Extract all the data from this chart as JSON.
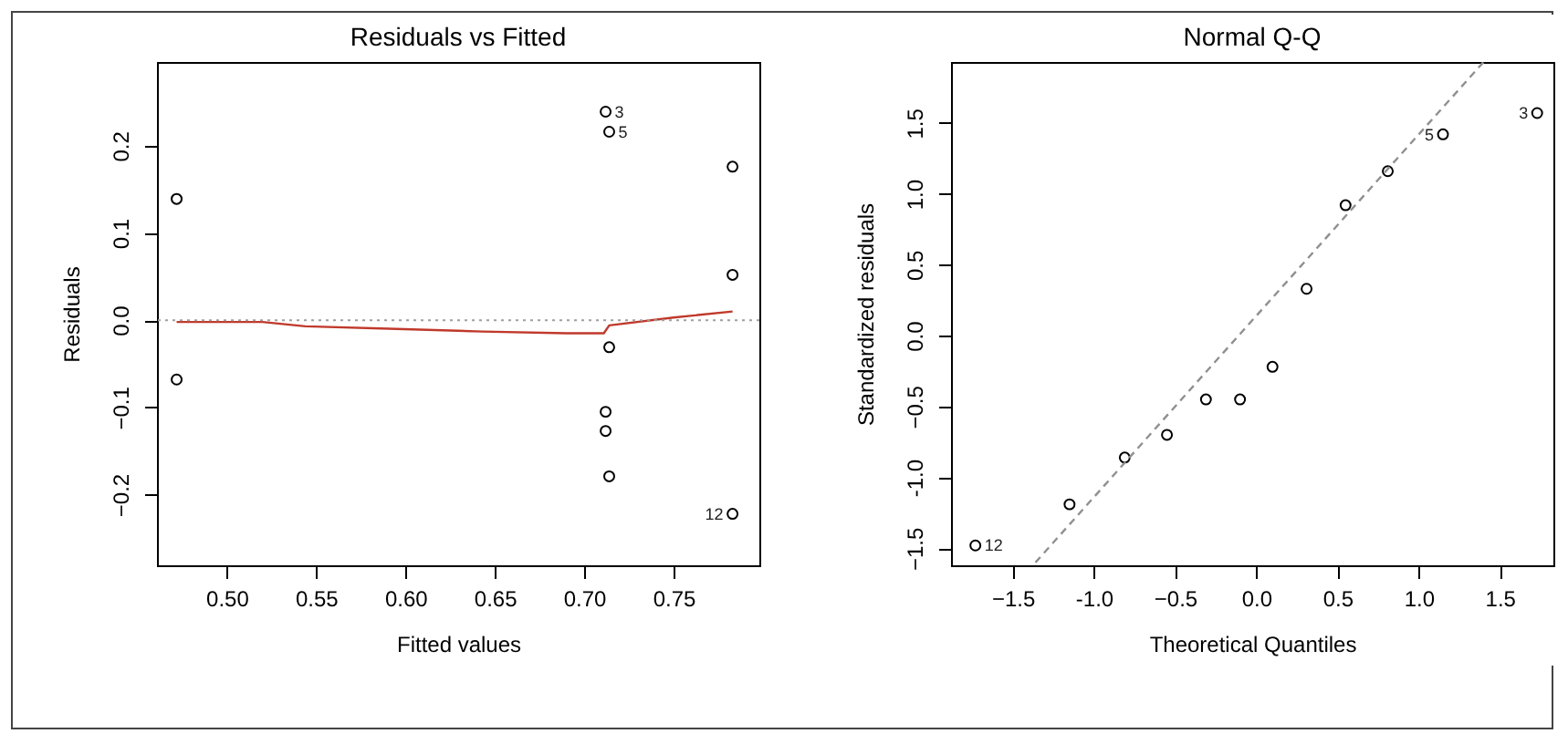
{
  "chart_data": [
    {
      "type": "scatter",
      "title": "Residuals vs Fitted",
      "xlabel": "Fitted values",
      "ylabel": "Residuals",
      "xlim": [
        0.461,
        0.798
      ],
      "xticks": [
        {
          "value": 0.5,
          "label": "0.50"
        },
        0.55,
        {
          "value": 0.6,
          "label": "0.60"
        },
        0.65,
        {
          "value": 0.7,
          "label": "0.70"
        },
        0.75
      ],
      "ylim": [
        -0.281,
        0.296
      ],
      "yticks": [
        -0.2,
        -0.1,
        {
          "value": 0,
          "label": "0.0"
        },
        0.1,
        0.2
      ],
      "grid": false,
      "legend": false,
      "marker": "circle",
      "series": [
        {
          "color": "#000000",
          "x": [
            0.472,
            0.472,
            0.712,
            0.712,
            0.712,
            0.714,
            0.714,
            0.714,
            0.783,
            0.783,
            0.783
          ],
          "values": [
            0.139,
            -0.068,
            0.239,
            -0.105,
            -0.127,
            0.216,
            -0.031,
            -0.179,
            0.176,
            0.052,
            -0.222
          ]
        },
        {
          "type": "line",
          "color": "#c0392b",
          "line_style": "solid",
          "marker": "none",
          "x": [
            0.472,
            0.52,
            0.544,
            0.595,
            0.643,
            0.69,
            0.711,
            0.714,
            0.75,
            0.783
          ],
          "values": [
            -0.002,
            -0.002,
            -0.007,
            -0.01,
            -0.013,
            -0.015,
            -0.015,
            -0.006,
            0.003,
            0.01
          ]
        }
      ],
      "ref_lines": [
        {
          "axis": "y",
          "value": 0,
          "color": "#a0a0a0",
          "line_style": "dotted"
        }
      ],
      "annotations": [
        {
          "text": "3",
          "x": 0.712,
          "y": 0.239
        },
        {
          "text": "5",
          "x": 0.714,
          "y": 0.216
        },
        {
          "text": "12",
          "x": 0.783,
          "y": -0.222
        }
      ]
    },
    {
      "type": "scatter",
      "title": "Normal Q-Q",
      "xlabel": "Theoretical Quantiles",
      "ylabel": "Standardized residuals",
      "xlim": [
        -1.88,
        1.83
      ],
      "xticks": [
        -1.5,
        {
          "value": -1,
          "label": "-1.0"
        },
        -0.5,
        {
          "value": 0,
          "label": "0.0"
        },
        0.5,
        {
          "value": 1,
          "label": "1.0"
        },
        1.5
      ],
      "ylim": [
        -1.62,
        1.93
      ],
      "yticks": [
        -1.5,
        {
          "value": -1,
          "label": "-1.0"
        },
        -0.5,
        {
          "value": 0,
          "label": "0.0"
        },
        0.5,
        {
          "value": 1,
          "label": "1.0"
        },
        1.5
      ],
      "grid": false,
      "legend": false,
      "marker": "circle",
      "series": [
        {
          "color": "#000000",
          "x": [
            -1.73,
            -1.15,
            -0.81,
            -0.55,
            -0.31,
            -0.1,
            0.1,
            0.31,
            0.55,
            0.81,
            1.15,
            1.73
          ],
          "values": [
            -1.48,
            -1.19,
            -0.86,
            -0.7,
            -0.45,
            -0.45,
            -0.22,
            0.33,
            0.92,
            1.16,
            1.42,
            1.57
          ]
        },
        {
          "type": "line",
          "color": "#909090",
          "line_style": "dashed",
          "marker": "none",
          "x": [
            -1.36,
            1.4
          ],
          "values": [
            -1.6,
            1.93
          ]
        }
      ],
      "annotations": [
        {
          "text": "12",
          "x": -1.73,
          "y": -1.48
        },
        {
          "text": "5",
          "x": 1.15,
          "y": 1.416
        },
        {
          "text": "3",
          "x": 1.73,
          "y": 1.571
        }
      ]
    }
  ]
}
